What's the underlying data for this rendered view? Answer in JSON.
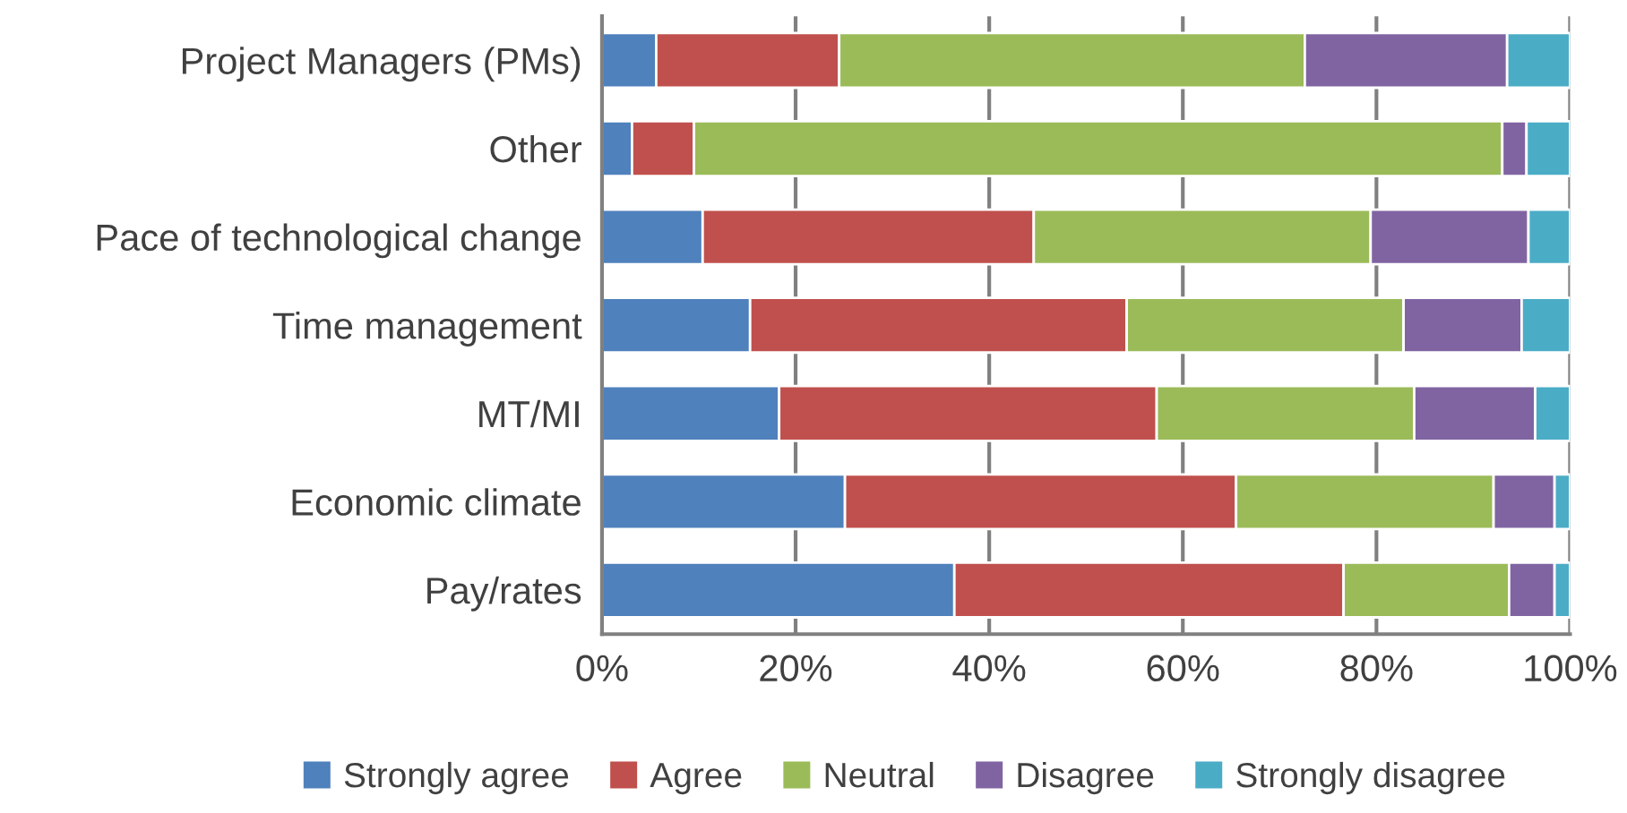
{
  "chart_data": {
    "type": "bar",
    "orientation": "horizontal",
    "stacked": true,
    "categories": [
      "Project Managers (PMs)",
      "Other",
      "Pace of technological change",
      "Time management",
      "MT/MI",
      "Economic climate",
      "Pay/rates"
    ],
    "series": [
      {
        "name": "Strongly agree",
        "color": "#4f81bd",
        "values": [
          5.6,
          3.1,
          10.4,
          15.3,
          18.3,
          25.1,
          36.4
        ]
      },
      {
        "name": "Agree",
        "color": "#c0504d",
        "values": [
          18.9,
          6.4,
          34.2,
          38.9,
          39.0,
          40.4,
          40.2
        ]
      },
      {
        "name": "Neutral",
        "color": "#9bbb59",
        "values": [
          48.1,
          83.5,
          34.8,
          28.6,
          26.6,
          26.6,
          17.1
        ]
      },
      {
        "name": "Disagree",
        "color": "#8064a2",
        "values": [
          20.9,
          2.5,
          16.3,
          12.2,
          12.5,
          6.3,
          4.7
        ]
      },
      {
        "name": "Strongly disagree",
        "color": "#4bacc6",
        "values": [
          6.5,
          4.5,
          4.3,
          5.0,
          3.6,
          1.6,
          1.6
        ]
      }
    ],
    "xlim": [
      0,
      100
    ],
    "xticks": [
      {
        "value": 0,
        "label": "0%"
      },
      {
        "value": 20,
        "label": "20%"
      },
      {
        "value": 40,
        "label": "40%"
      },
      {
        "value": 60,
        "label": "60%"
      },
      {
        "value": 80,
        "label": "80%"
      },
      {
        "value": 100,
        "label": "100%"
      }
    ],
    "grid": "x",
    "legend": "bottom"
  }
}
